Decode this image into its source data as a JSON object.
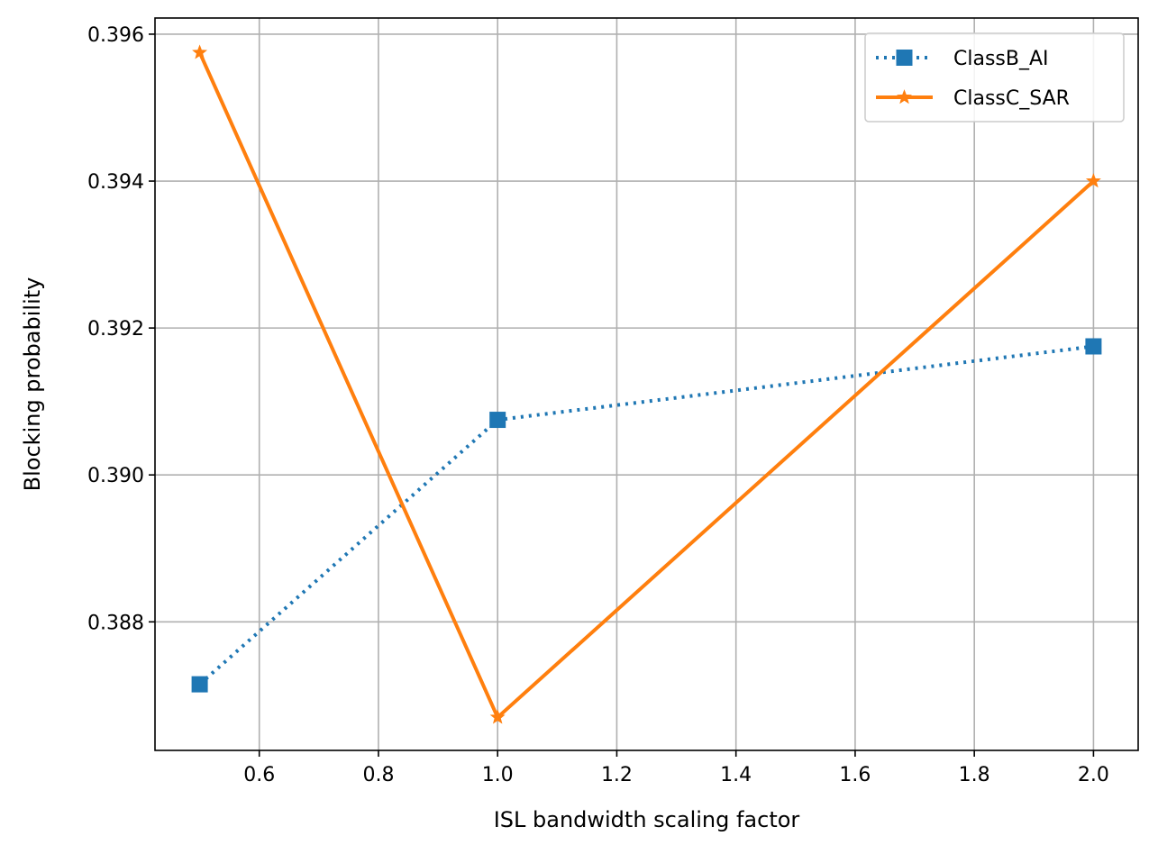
{
  "chart_data": {
    "type": "line",
    "title": "",
    "xlabel": "ISL bandwidth scaling factor",
    "ylabel": "Blocking probability",
    "xlim": [
      0.425,
      2.075
    ],
    "ylim": [
      0.38625,
      0.39622
    ],
    "grid": true,
    "legend_position": "top-right",
    "x_ticks": [
      0.6,
      0.8,
      1.0,
      1.2,
      1.4,
      1.6,
      1.8,
      2.0
    ],
    "x_tick_labels": [
      "0.6",
      "0.8",
      "1.0",
      "1.2",
      "1.4",
      "1.6",
      "1.8",
      "2.0"
    ],
    "y_ticks": [
      0.388,
      0.39,
      0.392,
      0.394,
      0.396
    ],
    "y_tick_labels": [
      "0.388",
      "0.390",
      "0.392",
      "0.394",
      "0.396"
    ],
    "series": [
      {
        "name": "ClassB_AI",
        "x": [
          0.5,
          1.0,
          2.0
        ],
        "y": [
          0.38715,
          0.39075,
          0.39175
        ],
        "color": "#1f77b4",
        "line_style": "dotted",
        "marker": "square"
      },
      {
        "name": "ClassC_SAR",
        "x": [
          0.5,
          1.0,
          2.0
        ],
        "y": [
          0.39575,
          0.3867,
          0.394
        ],
        "color": "#ff7f0e",
        "line_style": "solid",
        "marker": "star"
      }
    ]
  }
}
